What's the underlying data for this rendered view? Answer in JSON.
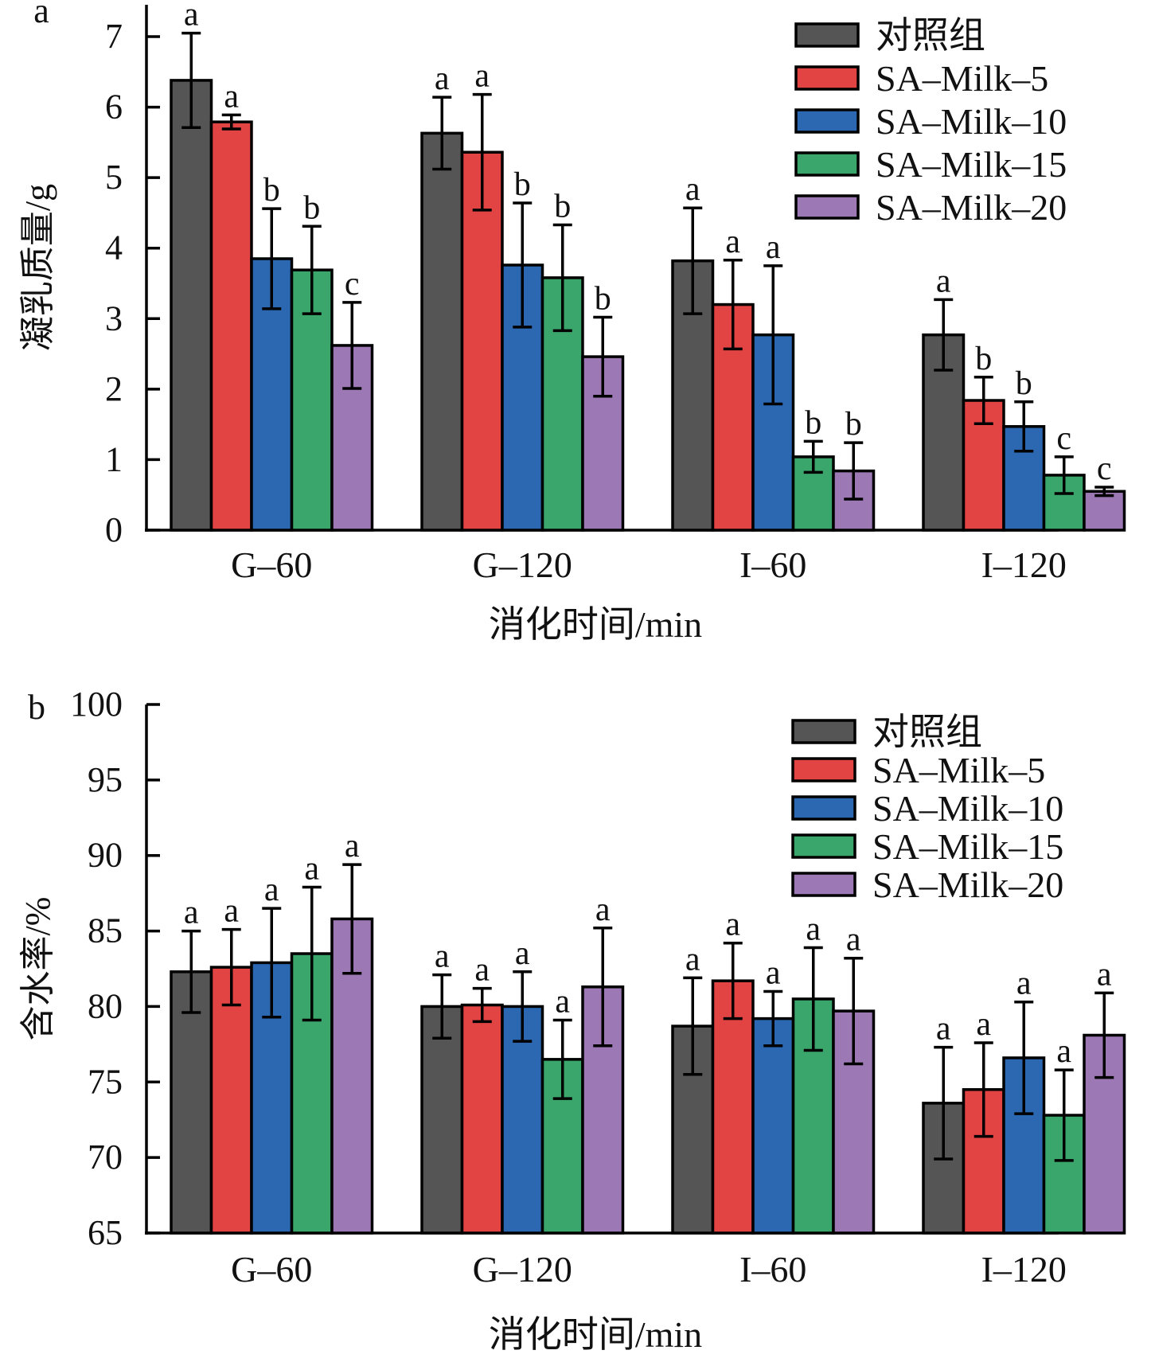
{
  "series_meta": [
    {
      "name": "对照组",
      "color": "#555555"
    },
    {
      "name": "SA-Milk-5",
      "color": "#e24343"
    },
    {
      "name": "SA-Milk-10",
      "color": "#2c68b2"
    },
    {
      "name": "SA-Milk-15",
      "color": "#3ba66b"
    },
    {
      "name": "SA-Milk-20",
      "color": "#9c78b4"
    }
  ],
  "chart_data": [
    {
      "type": "bar",
      "panel_label": "a",
      "title": "",
      "xlabel": "消化时间/min",
      "ylabel": "凝乳质量/g",
      "categories": [
        "G-60",
        "G-120",
        "I-60",
        "I-120"
      ],
      "ylim": [
        0,
        7
      ],
      "yticks": [
        0,
        1,
        2,
        3,
        4,
        5,
        6,
        7
      ],
      "grid": false,
      "legend_position": "top-right",
      "series": [
        {
          "name": "对照组",
          "values": [
            6.38,
            5.63,
            3.82,
            2.77
          ],
          "errors": [
            0.67,
            0.51,
            0.75,
            0.5
          ],
          "sig": [
            "a",
            "a",
            "a",
            "a"
          ]
        },
        {
          "name": "SA-Milk-5",
          "values": [
            5.79,
            5.36,
            3.2,
            1.84
          ],
          "errors": [
            0.1,
            0.82,
            0.63,
            0.33
          ],
          "sig": [
            "a",
            "a",
            "a",
            "b"
          ]
        },
        {
          "name": "SA-Milk-10",
          "values": [
            3.85,
            3.76,
            2.77,
            1.47
          ],
          "errors": [
            0.71,
            0.88,
            0.98,
            0.35
          ],
          "sig": [
            "b",
            "b",
            "a",
            "b"
          ]
        },
        {
          "name": "SA-Milk-15",
          "values": [
            3.69,
            3.58,
            1.04,
            0.78
          ],
          "errors": [
            0.62,
            0.75,
            0.22,
            0.26
          ],
          "sig": [
            "b",
            "b",
            "b",
            "c"
          ]
        },
        {
          "name": "SA-Milk-20",
          "values": [
            2.62,
            2.46,
            0.84,
            0.55
          ],
          "errors": [
            0.61,
            0.56,
            0.4,
            0.06
          ],
          "sig": [
            "c",
            "b",
            "b",
            "c"
          ]
        }
      ]
    },
    {
      "type": "bar",
      "panel_label": "b",
      "title": "",
      "xlabel": "消化时间/min",
      "ylabel": "含水率/%",
      "categories": [
        "G-60",
        "G-120",
        "I-60",
        "I-120"
      ],
      "ylim": [
        65,
        100
      ],
      "yticks": [
        65,
        70,
        75,
        80,
        85,
        90,
        95,
        100
      ],
      "grid": false,
      "legend_position": "top-right",
      "series": [
        {
          "name": "对照组",
          "values": [
            82.3,
            80.0,
            78.7,
            73.6
          ],
          "errors": [
            2.7,
            2.1,
            3.2,
            3.7
          ],
          "sig": [
            "a",
            "a",
            "a",
            "a"
          ]
        },
        {
          "name": "SA-Milk-5",
          "values": [
            82.6,
            80.1,
            81.7,
            74.5
          ],
          "errors": [
            2.5,
            1.1,
            2.5,
            3.1
          ],
          "sig": [
            "a",
            "a",
            "a",
            "a"
          ]
        },
        {
          "name": "SA-Milk-10",
          "values": [
            82.9,
            80.0,
            79.2,
            76.6
          ],
          "errors": [
            3.6,
            2.3,
            1.8,
            3.7
          ],
          "sig": [
            "a",
            "a",
            "a",
            "a"
          ]
        },
        {
          "name": "SA-Milk-15",
          "values": [
            83.5,
            76.5,
            80.5,
            72.8
          ],
          "errors": [
            4.4,
            2.6,
            3.4,
            3.0
          ],
          "sig": [
            "a",
            "a",
            "a",
            "a"
          ]
        },
        {
          "name": "SA-Milk-20",
          "values": [
            85.8,
            81.3,
            79.7,
            78.1
          ],
          "errors": [
            3.6,
            3.9,
            3.5,
            2.8
          ],
          "sig": [
            "a",
            "a",
            "a",
            "a"
          ]
        }
      ]
    }
  ]
}
